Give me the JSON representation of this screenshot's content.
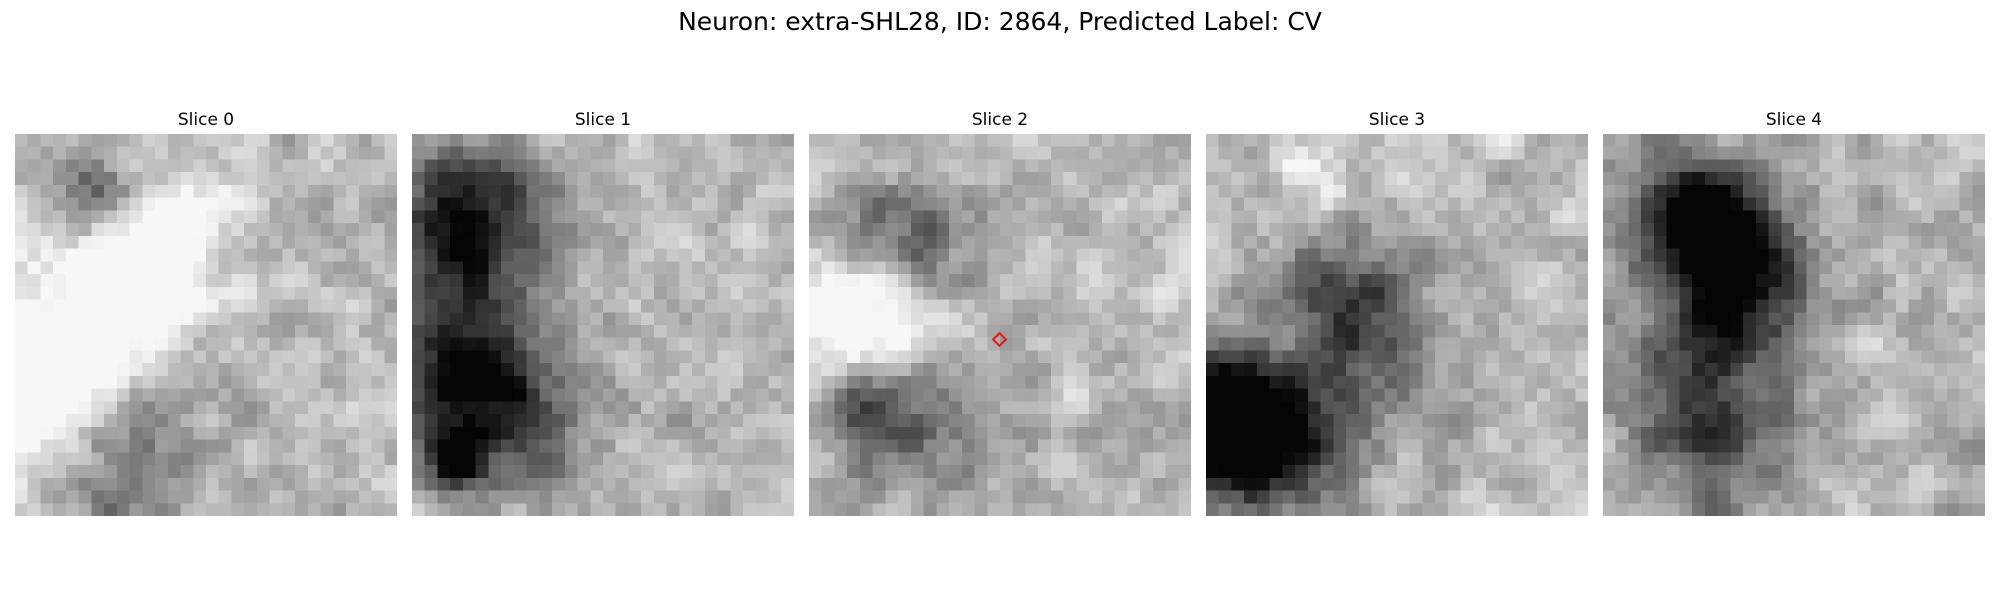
{
  "figure": {
    "title": "Neuron: extra-SHL28, ID: 2864, Predicted Label: CV"
  },
  "panels": [
    {
      "title": "Slice 0"
    },
    {
      "title": "Slice 1"
    },
    {
      "title": "Slice 2"
    },
    {
      "title": "Slice 3"
    },
    {
      "title": "Slice 4"
    }
  ],
  "colors": {
    "marker": "#e81414",
    "background": "#ffffff"
  }
}
